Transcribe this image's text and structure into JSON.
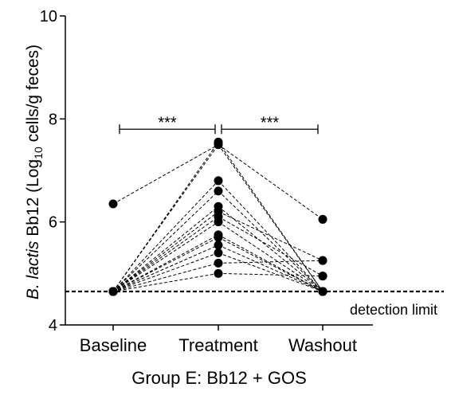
{
  "chart_data": {
    "type": "scatter",
    "title": "",
    "xlabel": "Group E: Bb12 + GOS",
    "ylabel": {
      "prefix_italic": "B. lactis",
      "main": " Bb12 (Log",
      "subscript": "10",
      "suffix": " cells/g feces)"
    },
    "categories": [
      "Baseline",
      "Treatment",
      "Washout"
    ],
    "ylim": [
      4,
      10
    ],
    "yticks": [
      "4",
      "6",
      "8",
      "10"
    ],
    "ytick_values": [
      4,
      6,
      8,
      10
    ],
    "detection_limit": {
      "value": 4.65,
      "label": "detection limit"
    },
    "significance": [
      {
        "from": 0,
        "to": 1,
        "label": "***",
        "y": 7.8
      },
      {
        "from": 1,
        "to": 2,
        "label": "***",
        "y": 7.8
      }
    ],
    "subjects": [
      [
        6.35,
        7.5,
        4.65
      ],
      [
        4.65,
        7.55,
        4.65
      ],
      [
        4.65,
        7.5,
        6.05
      ],
      [
        4.65,
        6.8,
        4.65
      ],
      [
        4.65,
        6.6,
        4.65
      ],
      [
        4.65,
        6.3,
        4.65
      ],
      [
        4.65,
        6.2,
        5.25
      ],
      [
        4.65,
        6.1,
        4.95
      ],
      [
        4.65,
        6.0,
        4.65
      ],
      [
        4.65,
        5.75,
        4.65
      ],
      [
        4.65,
        5.7,
        4.65
      ],
      [
        4.65,
        5.55,
        4.65
      ],
      [
        4.65,
        5.4,
        4.65
      ],
      [
        4.65,
        5.2,
        5.25
      ],
      [
        4.65,
        5.0,
        4.95
      ]
    ]
  }
}
